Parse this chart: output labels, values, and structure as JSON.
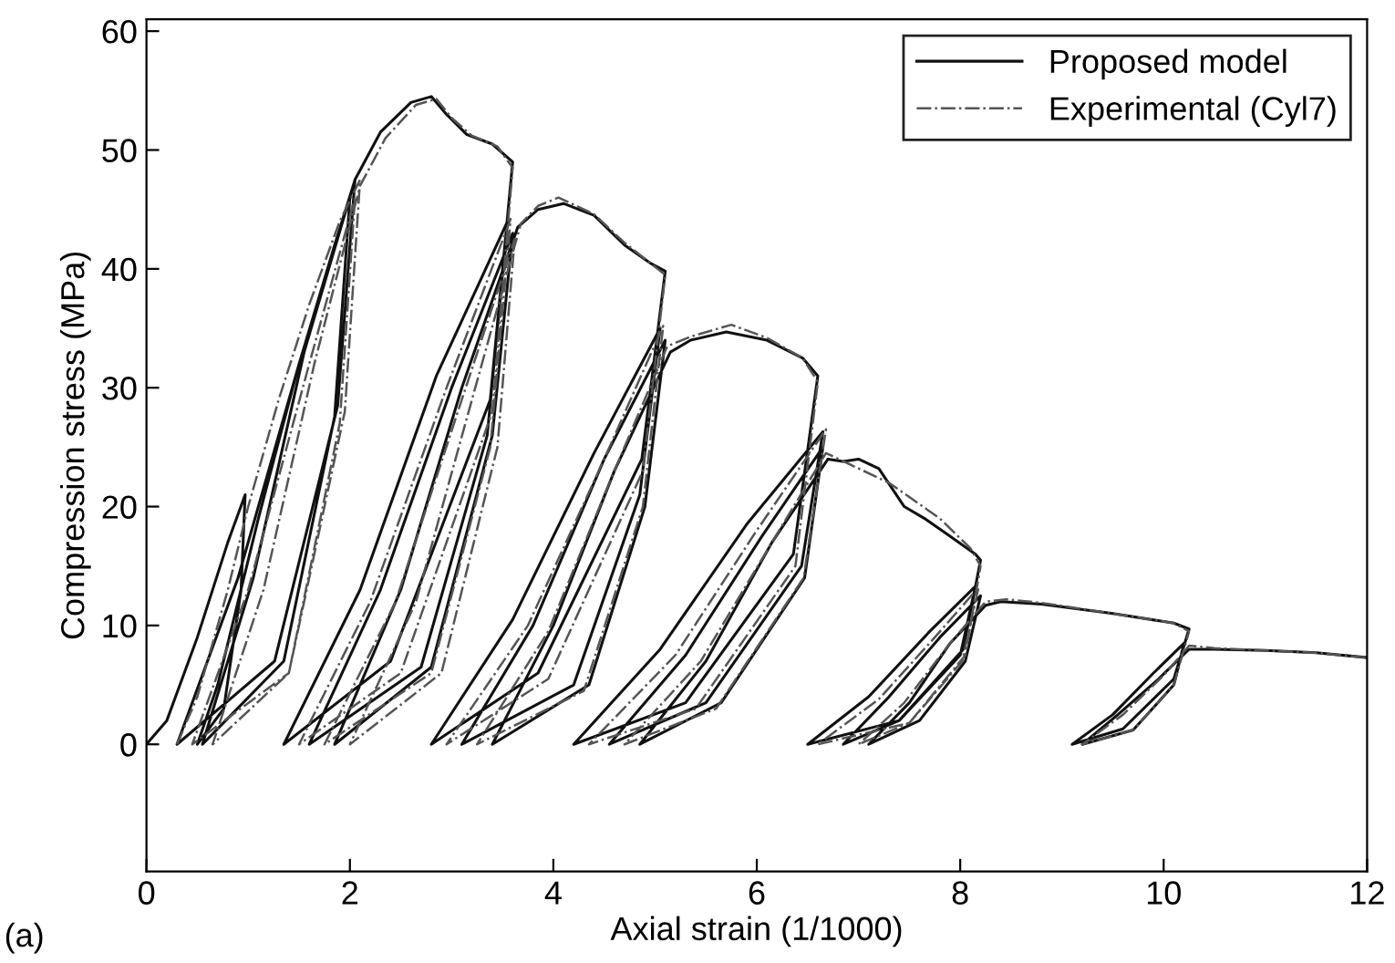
{
  "chart_data": {
    "type": "line",
    "xlabel": "Axial strain (1/1000)",
    "ylabel": "Compression stress (MPa)",
    "xlim": [
      0,
      12
    ],
    "xticks": [
      0,
      2,
      4,
      6,
      8,
      10,
      12
    ],
    "ylim": [
      -10.7,
      61
    ],
    "yticks": [
      0,
      10,
      20,
      30,
      40,
      50,
      60
    ],
    "grid": false,
    "legend": "top right",
    "annotations": [
      "(a)"
    ],
    "series": [
      {
        "name": "Proposed model",
        "color": "#111111",
        "line_style": "solid",
        "x": [
          0,
          0.2,
          0.5,
          0.8,
          0.97,
          0.93,
          0.76,
          0.5,
          0.7,
          1.1,
          1.5,
          1.85,
          2.05,
          1.88,
          1.26,
          0.3,
          0.9,
          1.5,
          2.0,
          1.85,
          1.35,
          0.55,
          1.05,
          1.55,
          2.05,
          2.3,
          2.6,
          2.8,
          2.95,
          3.15,
          3.4,
          3.6,
          3.38,
          2.4,
          1.35,
          2.1,
          2.85,
          3.55,
          3.35,
          2.7,
          1.6,
          2.3,
          3.0,
          3.6,
          3.4,
          2.8,
          1.85,
          2.5,
          3.1,
          3.65,
          3.85,
          4.1,
          4.4,
          4.7,
          4.95,
          5.1,
          4.87,
          3.85,
          2.8,
          3.6,
          4.4,
          5.05,
          4.85,
          4.2,
          3.1,
          3.8,
          4.5,
          5.1,
          4.9,
          4.35,
          3.4,
          4.0,
          4.6,
          5.15,
          5.35,
          5.7,
          6.1,
          6.45,
          6.6,
          6.36,
          5.3,
          4.2,
          5.05,
          5.9,
          6.65,
          6.44,
          5.5,
          4.55,
          5.3,
          6.05,
          6.65,
          6.47,
          5.65,
          4.85,
          5.5,
          6.15,
          6.7,
          6.85,
          7.0,
          7.2,
          7.45,
          7.65,
          7.9,
          8.15,
          8.2,
          8.03,
          7.4,
          6.5,
          7.1,
          7.7,
          8.15,
          8.0,
          7.4,
          6.85,
          7.3,
          7.8,
          8.2,
          8.05,
          7.6,
          7.1,
          7.5,
          7.9,
          8.25,
          8.4,
          8.8,
          9.5,
          10.1,
          10.25,
          10.1,
          9.6,
          9.1,
          9.5,
          9.9,
          10.2,
          10.1,
          9.7,
          9.2,
          9.55,
          9.95,
          10.25,
          10.5,
          11,
          11.5,
          12
        ],
        "values": [
          0,
          2,
          9,
          17,
          21,
          13,
          3,
          0,
          5,
          19,
          32,
          42,
          47.5,
          28.5,
          7,
          0,
          14,
          32,
          46,
          27.6,
          7,
          0,
          14,
          33,
          47.5,
          51.5,
          54,
          54.5,
          53,
          51.3,
          50.5,
          49,
          29,
          7,
          0,
          13,
          31,
          44,
          26,
          6.5,
          0,
          13,
          30,
          43,
          26,
          6.5,
          0,
          13,
          30,
          43.5,
          45,
          45.5,
          44.5,
          42,
          40.5,
          39.8,
          24,
          6,
          0,
          10.5,
          24.5,
          35,
          21,
          5,
          0,
          10,
          24,
          34,
          20,
          5,
          0,
          10,
          23,
          33,
          34,
          34.7,
          34,
          32.5,
          31,
          16,
          3.5,
          0,
          8,
          18.5,
          26.3,
          15,
          3.5,
          0,
          7.5,
          17.5,
          25,
          14,
          3.5,
          0,
          7,
          17,
          24,
          23.8,
          24,
          23.2,
          20,
          19,
          17.5,
          16,
          15.5,
          8,
          2,
          0,
          4,
          9.5,
          13.3,
          7.5,
          2,
          0,
          4,
          9,
          12.5,
          7,
          2,
          0,
          3.5,
          8.5,
          11.7,
          12,
          11.8,
          11,
          10.2,
          9.7,
          5.5,
          1.3,
          0,
          2.5,
          6,
          8.5,
          5,
          1.2,
          0,
          2.5,
          5.5,
          8,
          8,
          7.9,
          7.7,
          7.3
        ]
      },
      {
        "name": "Experimental (Cyl7)",
        "color": "#555555",
        "line_style": "dashdot",
        "x": [
          0.3,
          0.5,
          0.8,
          1.0,
          1.3,
          1.6,
          1.9,
          2.1,
          1.95,
          1.4,
          0.45,
          1.0,
          1.6,
          2.05,
          1.9,
          1.4,
          0.65,
          1.15,
          1.65,
          2.1,
          2.35,
          2.65,
          2.85,
          3.0,
          3.2,
          3.45,
          3.6,
          3.4,
          2.5,
          1.5,
          2.2,
          2.95,
          3.58,
          3.38,
          2.8,
          1.75,
          2.45,
          3.1,
          3.62,
          3.45,
          2.9,
          2.0,
          2.65,
          3.2,
          3.68,
          3.85,
          4.05,
          4.4,
          4.7,
          4.95,
          5.1,
          4.88,
          3.95,
          2.95,
          3.75,
          4.5,
          5.08,
          4.88,
          4.3,
          3.25,
          3.95,
          4.6,
          5.12,
          5.35,
          5.75,
          6.1,
          6.45,
          6.6,
          6.38,
          5.4,
          4.35,
          5.2,
          6.0,
          6.68,
          6.46,
          5.6,
          4.7,
          5.45,
          6.15,
          6.68,
          7.3,
          7.8,
          8.1,
          8.2,
          8.05,
          7.5,
          6.6,
          7.2,
          7.75,
          8.18,
          8.02,
          7.5,
          7.0,
          7.45,
          7.9,
          8.25,
          8.45,
          8.8,
          9.5,
          10.1,
          10.25,
          10.1,
          9.7,
          9.2,
          9.6,
          10.0,
          10.25,
          10.5,
          11,
          11.5,
          12
        ],
        "values": [
          0,
          4,
          13,
          20,
          29,
          37,
          44,
          47.5,
          28,
          6,
          0,
          13,
          32,
          46,
          27,
          6,
          0,
          13,
          32,
          47,
          51,
          53.8,
          54.3,
          52.7,
          51.2,
          50.3,
          48.5,
          28,
          6,
          0,
          12,
          30,
          44.2,
          25,
          6,
          0,
          12,
          29,
          42.5,
          25,
          6,
          0,
          12,
          29,
          43.8,
          45.3,
          46,
          44.6,
          42.2,
          40.5,
          39.5,
          23,
          5.5,
          0,
          10,
          24,
          35.2,
          20,
          4.5,
          0,
          9.5,
          23,
          33.5,
          34.3,
          35.3,
          34.2,
          32.5,
          30.5,
          15,
          3,
          0,
          7.5,
          18,
          26.5,
          14,
          3,
          0,
          7,
          17,
          24.5,
          22,
          19,
          16.5,
          15,
          7.5,
          1.8,
          0,
          3.8,
          9,
          13.2,
          7,
          1.8,
          0,
          3.5,
          8.5,
          12,
          12.2,
          11.9,
          11,
          10.2,
          9.5,
          5,
          1.2,
          0,
          2.5,
          5.8,
          8.3,
          8.1,
          7.9,
          7.7,
          7.3
        ]
      }
    ]
  }
}
